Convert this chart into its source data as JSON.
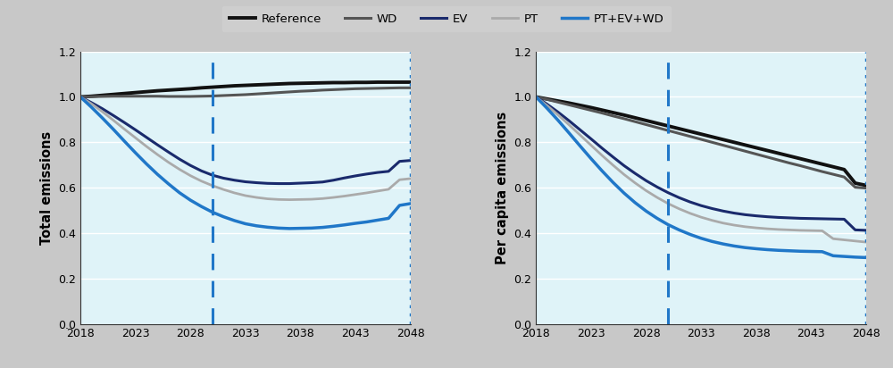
{
  "years": [
    2018,
    2019,
    2020,
    2021,
    2022,
    2023,
    2024,
    2025,
    2026,
    2027,
    2028,
    2029,
    2030,
    2031,
    2032,
    2033,
    2034,
    2035,
    2036,
    2037,
    2038,
    2039,
    2040,
    2041,
    2042,
    2043,
    2044,
    2045,
    2046,
    2047,
    2048
  ],
  "total": {
    "Reference": [
      1.0,
      1.003,
      1.007,
      1.011,
      1.015,
      1.019,
      1.023,
      1.027,
      1.03,
      1.033,
      1.036,
      1.04,
      1.043,
      1.046,
      1.049,
      1.051,
      1.053,
      1.055,
      1.057,
      1.059,
      1.06,
      1.061,
      1.062,
      1.063,
      1.063,
      1.064,
      1.064,
      1.065,
      1.065,
      1.065,
      1.065
    ],
    "WD": [
      1.0,
      1.001,
      1.002,
      1.003,
      1.003,
      1.003,
      1.003,
      1.003,
      1.002,
      1.002,
      1.002,
      1.003,
      1.004,
      1.006,
      1.008,
      1.01,
      1.013,
      1.016,
      1.019,
      1.022,
      1.025,
      1.027,
      1.03,
      1.032,
      1.034,
      1.036,
      1.037,
      1.038,
      1.039,
      1.04,
      1.04
    ],
    "EV": [
      1.0,
      0.975,
      0.948,
      0.918,
      0.887,
      0.855,
      0.822,
      0.789,
      0.757,
      0.726,
      0.698,
      0.674,
      0.655,
      0.642,
      0.633,
      0.626,
      0.622,
      0.619,
      0.618,
      0.618,
      0.62,
      0.622,
      0.625,
      0.633,
      0.643,
      0.652,
      0.66,
      0.667,
      0.672,
      0.716,
      0.72
    ],
    "PT": [
      1.0,
      0.97,
      0.935,
      0.897,
      0.858,
      0.82,
      0.782,
      0.746,
      0.712,
      0.681,
      0.653,
      0.629,
      0.609,
      0.592,
      0.577,
      0.565,
      0.557,
      0.551,
      0.548,
      0.547,
      0.548,
      0.549,
      0.552,
      0.557,
      0.563,
      0.57,
      0.577,
      0.585,
      0.593,
      0.635,
      0.64
    ],
    "PT+EV+WD": [
      1.0,
      0.955,
      0.907,
      0.857,
      0.805,
      0.754,
      0.705,
      0.659,
      0.617,
      0.578,
      0.545,
      0.517,
      0.492,
      0.472,
      0.455,
      0.441,
      0.432,
      0.426,
      0.422,
      0.42,
      0.421,
      0.422,
      0.425,
      0.43,
      0.436,
      0.443,
      0.449,
      0.457,
      0.465,
      0.522,
      0.53
    ]
  },
  "percapita": {
    "Reference": [
      1.0,
      0.991,
      0.982,
      0.973,
      0.963,
      0.953,
      0.942,
      0.931,
      0.92,
      0.908,
      0.896,
      0.884,
      0.872,
      0.86,
      0.848,
      0.836,
      0.824,
      0.812,
      0.8,
      0.788,
      0.776,
      0.764,
      0.752,
      0.74,
      0.728,
      0.716,
      0.704,
      0.692,
      0.68,
      0.62,
      0.61
    ],
    "WD": [
      1.0,
      0.989,
      0.977,
      0.965,
      0.953,
      0.941,
      0.929,
      0.916,
      0.904,
      0.891,
      0.878,
      0.865,
      0.852,
      0.839,
      0.826,
      0.813,
      0.8,
      0.787,
      0.774,
      0.761,
      0.748,
      0.735,
      0.722,
      0.709,
      0.697,
      0.684,
      0.671,
      0.659,
      0.647,
      0.602,
      0.598
    ],
    "EV": [
      1.0,
      0.968,
      0.933,
      0.895,
      0.855,
      0.815,
      0.774,
      0.735,
      0.697,
      0.663,
      0.631,
      0.603,
      0.578,
      0.556,
      0.537,
      0.521,
      0.508,
      0.497,
      0.488,
      0.481,
      0.476,
      0.472,
      0.469,
      0.467,
      0.465,
      0.464,
      0.463,
      0.462,
      0.461,
      0.414,
      0.412
    ],
    "PT": [
      1.0,
      0.962,
      0.921,
      0.877,
      0.832,
      0.787,
      0.742,
      0.699,
      0.658,
      0.621,
      0.587,
      0.557,
      0.53,
      0.507,
      0.487,
      0.47,
      0.456,
      0.444,
      0.435,
      0.428,
      0.423,
      0.419,
      0.416,
      0.414,
      0.412,
      0.411,
      0.41,
      0.375,
      0.37,
      0.365,
      0.36
    ],
    "PT+EV+WD": [
      1.0,
      0.95,
      0.897,
      0.841,
      0.784,
      0.728,
      0.674,
      0.623,
      0.576,
      0.534,
      0.497,
      0.465,
      0.437,
      0.414,
      0.394,
      0.377,
      0.363,
      0.352,
      0.343,
      0.336,
      0.331,
      0.327,
      0.324,
      0.322,
      0.32,
      0.319,
      0.318,
      0.3,
      0.297,
      0.294,
      0.292
    ]
  },
  "colors": {
    "Reference": "#111111",
    "WD": "#555555",
    "EV": "#1a2a6c",
    "PT": "#aaaaaa",
    "PT+EV+WD": "#2077c8"
  },
  "linewidths": {
    "Reference": 2.8,
    "WD": 2.2,
    "EV": 2.2,
    "PT": 2.0,
    "PT+EV+WD": 2.5
  },
  "vline_dashed_x": 2030,
  "vline_dotted_x": 2048,
  "ylim": [
    0,
    1.2
  ],
  "yticks": [
    0,
    0.2,
    0.4,
    0.6,
    0.8,
    1.0,
    1.2
  ],
  "xticks": [
    2018,
    2023,
    2028,
    2033,
    2038,
    2043,
    2048
  ],
  "xlim": [
    2018,
    2048
  ],
  "bg_color": "#dff3f8",
  "legend_bg": "#d0d0d0",
  "fig_bg": "#c8c8c8",
  "ylabel_left": "Total emissions",
  "ylabel_right": "Per capita emissions",
  "vline_color": "#2077c8",
  "series_order": [
    "Reference",
    "WD",
    "EV",
    "PT",
    "PT+EV+WD"
  ]
}
